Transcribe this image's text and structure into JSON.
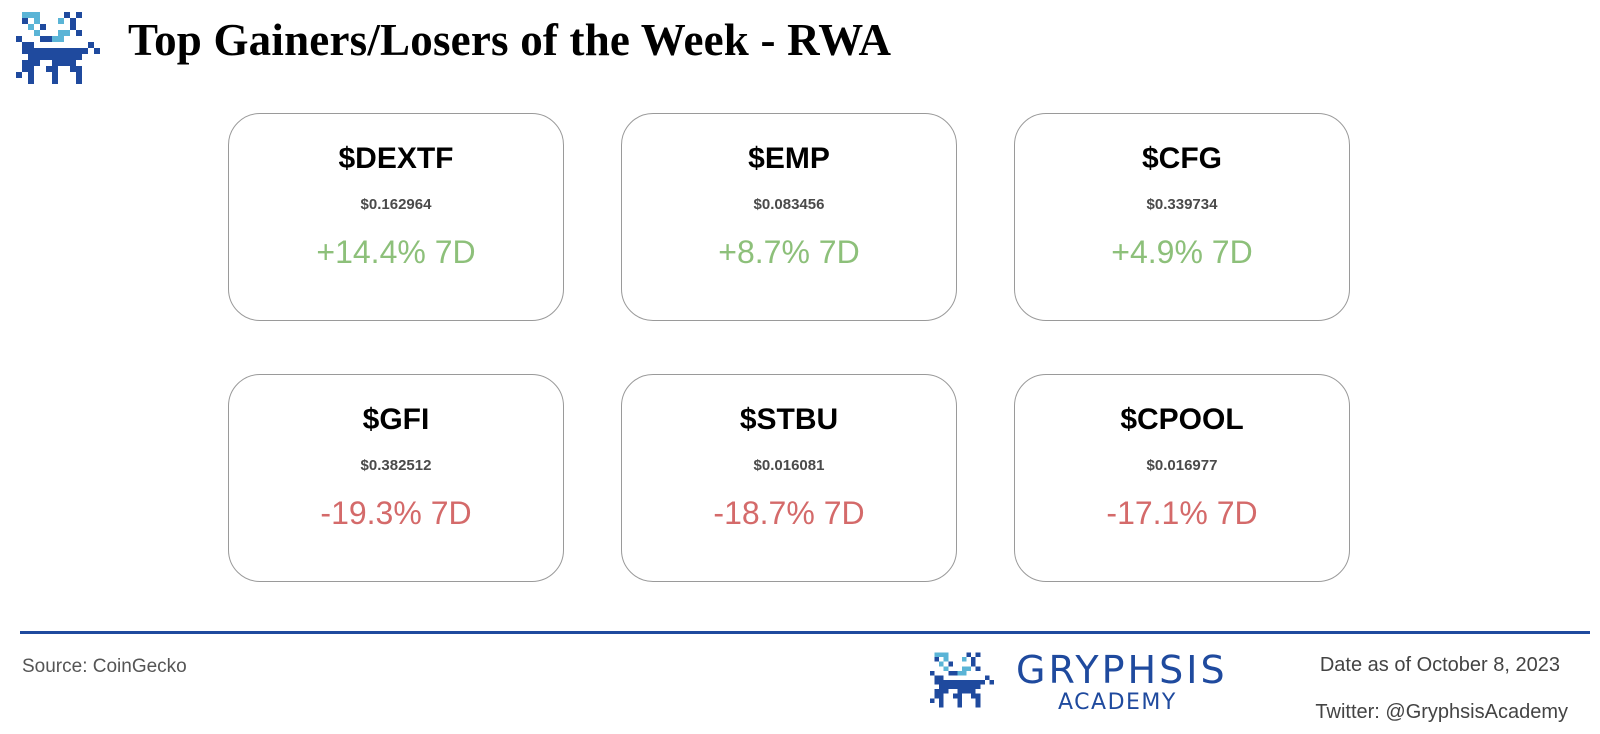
{
  "header": {
    "title": "Top Gainers/Losers of the Week - RWA",
    "logo": "gryphon-pixel-logo"
  },
  "colors": {
    "gain": "#8dc07a",
    "loss": "#d46a6a",
    "brand": "#1f4a9e",
    "logo_light": "#5ab4d6"
  },
  "cards": [
    {
      "symbol": "$DEXTF",
      "price": "$0.162964",
      "change": "+14.4% 7D",
      "direction": "gain"
    },
    {
      "symbol": "$EMP",
      "price": "$0.083456",
      "change": "+8.7% 7D",
      "direction": "gain"
    },
    {
      "symbol": "$CFG",
      "price": "$0.339734",
      "change": "+4.9% 7D",
      "direction": "gain"
    },
    {
      "symbol": "$GFI",
      "price": "$0.382512",
      "change": "-19.3% 7D",
      "direction": "loss"
    },
    {
      "symbol": "$STBU",
      "price": "$0.016081",
      "change": "-18.7% 7D",
      "direction": "loss"
    },
    {
      "symbol": "$CPOOL",
      "price": "$0.016977",
      "change": "-17.1% 7D",
      "direction": "loss"
    }
  ],
  "footer": {
    "source": "Source: CoinGecko",
    "brand_name": "GRYPHSIS",
    "brand_sub": "ACADEMY",
    "date": "Date as of October 8, 2023",
    "twitter": "Twitter: @GryphsisAcademy"
  }
}
